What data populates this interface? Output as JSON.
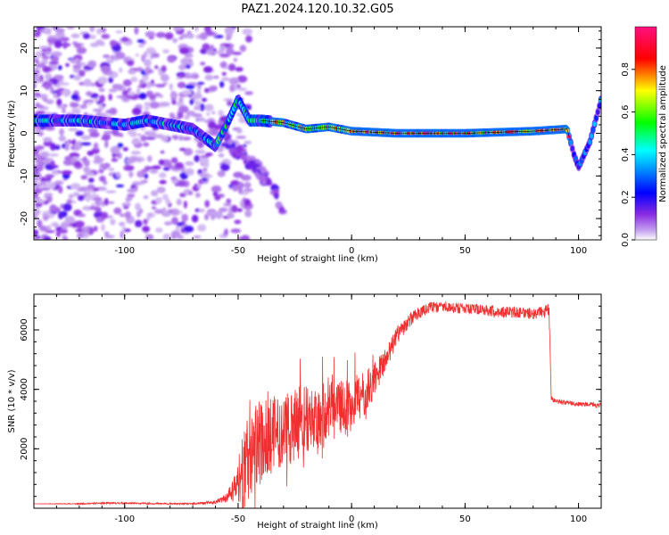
{
  "title": "PAZ1.2024.120.10.32.G05",
  "chart_data": [
    {
      "type": "heatmap",
      "title": "",
      "xlabel": "Height of straight line (km)",
      "ylabel": "Frequency (Hz)",
      "xlim": [
        -140,
        110
      ],
      "ylim": [
        -25,
        25
      ],
      "xticks": [
        -100,
        -50,
        0,
        50,
        100
      ],
      "yticks": [
        -20,
        -10,
        0,
        10,
        20
      ],
      "colorbar": {
        "label": "Normalized spectral amplitude",
        "ticks": [
          "0.0",
          "0.2",
          "0.4",
          "0.6",
          "0.8"
        ],
        "tick_values": [
          0.0,
          0.2,
          0.4,
          0.6,
          0.8
        ],
        "range": [
          0,
          1
        ],
        "colormap": [
          "#ffffff",
          "#8a2be2",
          "#0000ff",
          "#00ffff",
          "#00ff00",
          "#ffff00",
          "#ff0000",
          "#ff0080"
        ]
      },
      "ridge": {
        "x": [
          -140,
          -120,
          -110,
          -100,
          -90,
          -80,
          -70,
          -60,
          -55,
          -50,
          -45,
          -40,
          -30,
          -20,
          -10,
          0,
          20,
          50,
          80,
          95,
          98,
          100,
          105,
          110
        ],
        "y": [
          3,
          3,
          2.5,
          2,
          3,
          2,
          1,
          -3,
          2,
          8,
          3,
          3,
          2.5,
          1,
          1.5,
          0.5,
          0,
          0,
          0.5,
          1,
          -5,
          -8,
          -2,
          8
        ]
      },
      "branches": [
        {
          "x": [
            -62,
            -55,
            -48,
            -40,
            -35,
            -30
          ],
          "y": [
            2,
            -2,
            -5,
            -9,
            -13,
            -18
          ]
        }
      ]
    },
    {
      "type": "line",
      "title": "",
      "xlabel": "Height of straight line (km)",
      "ylabel": "SNR (10 * v/v)",
      "xlim": [
        -140,
        110
      ],
      "ylim": [
        0,
        7200
      ],
      "xticks": [
        -100,
        -50,
        0,
        50,
        100
      ],
      "yticks": [
        2000,
        4000,
        6000
      ],
      "series": [
        {
          "color": "#f03030",
          "x": [
            -140,
            -120,
            -110,
            -100,
            -90,
            -80,
            -70,
            -60,
            -55,
            -50,
            -48,
            -45,
            -42,
            -40,
            -35,
            -30,
            -25,
            -20,
            -15,
            -10,
            -5,
            0,
            5,
            10,
            15,
            20,
            25,
            30,
            35,
            40,
            45,
            50,
            55,
            60,
            65,
            70,
            75,
            80,
            85,
            87,
            88,
            90,
            95,
            100,
            105,
            110
          ],
          "y": [
            150,
            150,
            170,
            170,
            160,
            150,
            150,
            200,
            350,
            800,
            1300,
            1700,
            2100,
            2200,
            2500,
            2600,
            2800,
            3000,
            3100,
            3300,
            3400,
            3500,
            3800,
            4300,
            5000,
            5800,
            6300,
            6600,
            6750,
            6800,
            6750,
            6700,
            6700,
            6650,
            6600,
            6600,
            6550,
            6550,
            6600,
            6700,
            3700,
            3600,
            3550,
            3500,
            3500,
            3450
          ],
          "noise": [
            0,
            20,
            30,
            30,
            25,
            25,
            25,
            60,
            150,
            800,
            1300,
            1500,
            1500,
            1400,
            1300,
            1300,
            1200,
            1100,
            1100,
            1000,
            900,
            900,
            800,
            600,
            400,
            300,
            250,
            200,
            200,
            180,
            180,
            180,
            180,
            180,
            200,
            200,
            200,
            200,
            200,
            200,
            80,
            80,
            80,
            80,
            80,
            80
          ]
        }
      ]
    }
  ]
}
